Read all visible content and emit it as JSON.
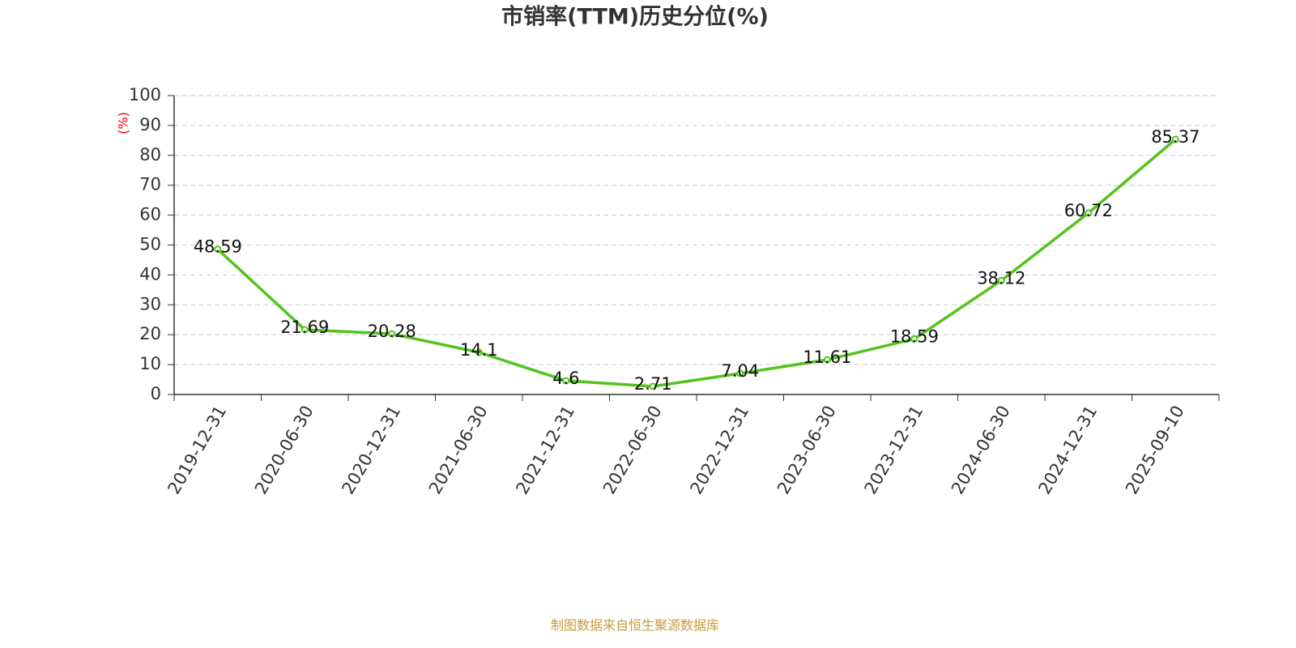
{
  "chart_data": {
    "type": "line",
    "title": "市销率(TTM)历史分位(%)",
    "y_label": "(%)",
    "categories": [
      "2019-12-31",
      "2020-06-30",
      "2020-12-31",
      "2021-06-30",
      "2021-12-31",
      "2022-06-30",
      "2022-12-31",
      "2023-06-30",
      "2023-12-31",
      "2024-06-30",
      "2024-12-31",
      "2025-09-10"
    ],
    "values": [
      48.59,
      21.69,
      20.28,
      14.1,
      4.6,
      2.71,
      7.04,
      11.61,
      18.59,
      38.12,
      60.72,
      85.37
    ],
    "color": "#52c41a",
    "ylim": [
      0,
      100
    ],
    "yticks": [
      0,
      10,
      20,
      30,
      40,
      50,
      60,
      70,
      80,
      90,
      100
    ],
    "grid": true,
    "source": "制图数据来自恒生聚源数据库"
  }
}
